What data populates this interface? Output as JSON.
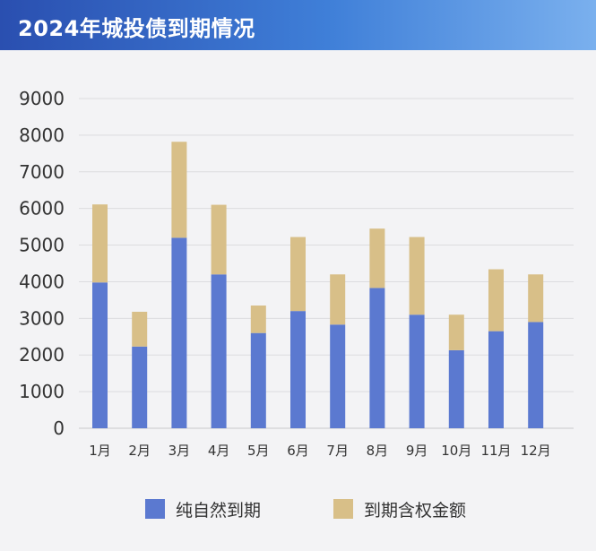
{
  "header": {
    "title": "2024年城投债到期情况"
  },
  "colors": {
    "base": "#5b79d0",
    "top": "#d8bf88",
    "grid": "#dcdcdf",
    "text": "#333333"
  },
  "chart_data": {
    "type": "bar",
    "stacked": true,
    "title": "2024年城投债到期情况",
    "categories": [
      "1月",
      "2月",
      "3月",
      "4月",
      "5月",
      "6月",
      "7月",
      "8月",
      "9月",
      "10月",
      "11月",
      "12月"
    ],
    "series": [
      {
        "name": "纯自然到期",
        "values": [
          3980,
          2230,
          5200,
          4200,
          2600,
          3200,
          2830,
          3830,
          3100,
          2130,
          2650,
          2900
        ]
      },
      {
        "name": "到期含权金额",
        "values": [
          2130,
          950,
          2620,
          1900,
          750,
          2020,
          1370,
          1620,
          2120,
          970,
          1690,
          1300
        ]
      }
    ],
    "yticks": [
      "0",
      "1000",
      "2000",
      "3000",
      "4000",
      "5000",
      "6000",
      "7000",
      "8000",
      "9000"
    ],
    "ylim": [
      0,
      9000
    ],
    "grid": true,
    "legend": "bottom"
  }
}
